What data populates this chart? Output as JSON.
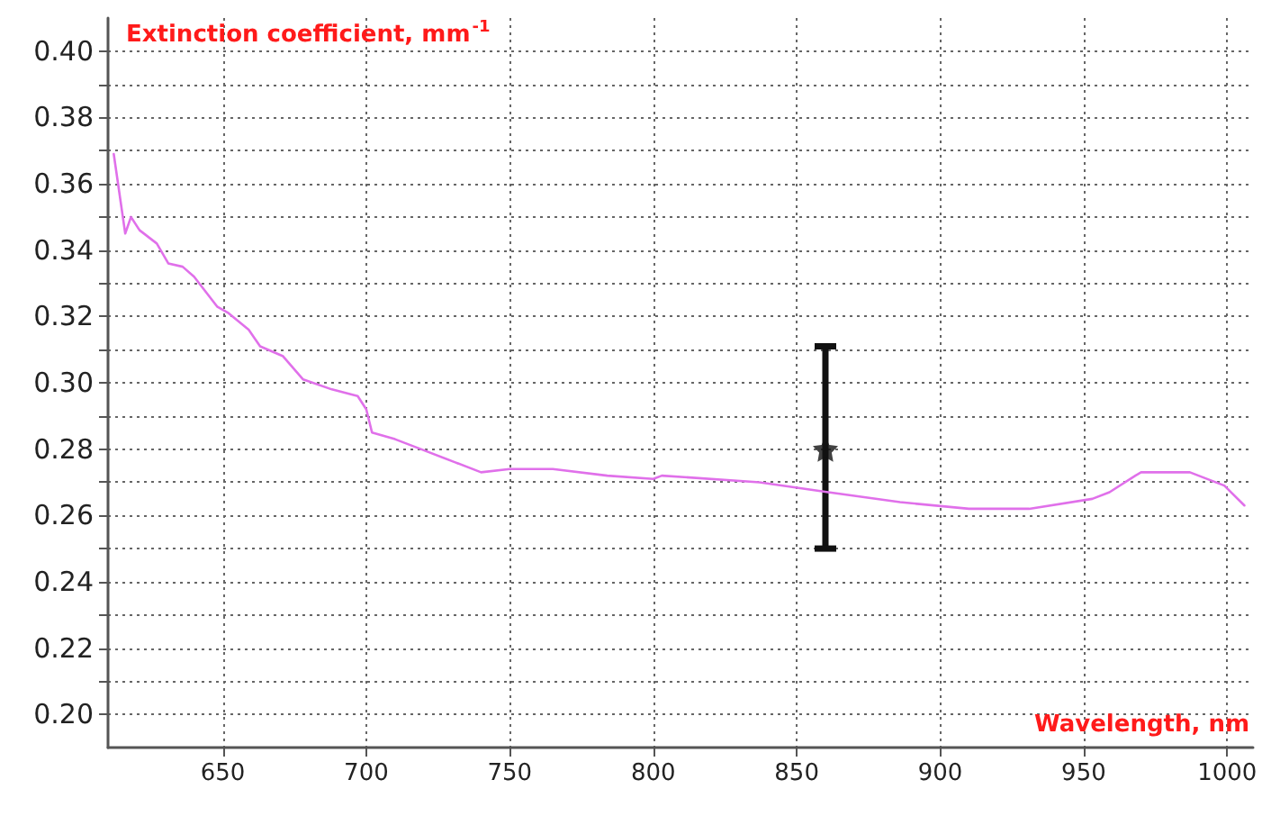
{
  "chart_data": {
    "type": "line",
    "xlabel": "Wavelength, nm",
    "ylabel": "Extinction coefficient, mm$^{-1}$",
    "xlim": [
      610,
      1009
    ],
    "ylim": [
      0.19,
      0.41
    ],
    "xticks": [
      650,
      700,
      750,
      800,
      850,
      900,
      950,
      1000
    ],
    "yticks": [
      {
        "value": 0.2,
        "label": "0.20"
      },
      {
        "value": 0.21,
        "label": null
      },
      {
        "value": 0.22,
        "label": "0.22"
      },
      {
        "value": 0.23,
        "label": null
      },
      {
        "value": 0.24,
        "label": "0.24"
      },
      {
        "value": 0.25,
        "label": null
      },
      {
        "value": 0.26,
        "label": "0.26"
      },
      {
        "value": 0.27,
        "label": null
      },
      {
        "value": 0.28,
        "label": "0.28"
      },
      {
        "value": 0.29,
        "label": null
      },
      {
        "value": 0.3,
        "label": "0.30"
      },
      {
        "value": 0.31,
        "label": null
      },
      {
        "value": 0.32,
        "label": "0.32"
      },
      {
        "value": 0.33,
        "label": null
      },
      {
        "value": 0.34,
        "label": "0.34"
      },
      {
        "value": 0.35,
        "label": null
      },
      {
        "value": 0.36,
        "label": "0.36"
      },
      {
        "value": 0.37,
        "label": null
      },
      {
        "value": 0.38,
        "label": "0.38"
      },
      {
        "value": 0.39,
        "label": null
      },
      {
        "value": 0.4,
        "label": "0.40"
      }
    ],
    "grid": true,
    "series": [
      {
        "color": "#e070ea",
        "marker": "none",
        "line_style": "solid",
        "x": [
          612,
          616,
          618,
          621,
          627,
          631,
          636,
          640,
          648,
          652,
          659,
          663,
          671,
          678,
          688,
          697,
          700,
          702,
          710,
          719,
          731,
          740,
          750,
          765,
          784,
          800,
          803,
          837,
          861,
          886,
          910,
          931,
          953,
          959,
          968,
          970,
          987,
          999,
          1006
        ],
        "values": [
          0.369,
          0.345,
          0.35,
          0.346,
          0.342,
          0.336,
          0.335,
          0.332,
          0.323,
          0.321,
          0.316,
          0.311,
          0.308,
          0.301,
          0.298,
          0.296,
          0.292,
          0.285,
          0.283,
          0.28,
          0.276,
          0.273,
          0.274,
          0.274,
          0.272,
          0.271,
          0.272,
          0.27,
          0.267,
          0.264,
          0.262,
          0.262,
          0.265,
          0.267,
          0.272,
          0.273,
          0.273,
          0.269,
          0.263
        ]
      },
      {
        "type": "scatter",
        "color": "#111111",
        "marker": "star",
        "x": [
          860
        ],
        "values": [
          0.28
        ],
        "errors": [
          [
            0.25,
            0.311
          ]
        ]
      }
    ]
  }
}
